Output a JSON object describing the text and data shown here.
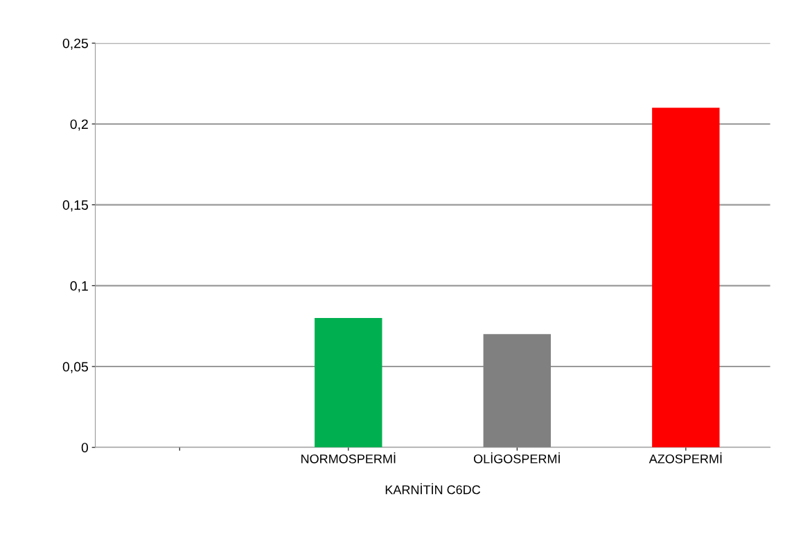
{
  "chart_data": {
    "type": "bar",
    "xlabel": "KARNİTİN C6DC",
    "categories": [
      null,
      "NORMOSPERMİ",
      "OLİGOSPERMİ",
      "AZOSPERMİ"
    ],
    "values": [
      null,
      0.08,
      0.07,
      0.21
    ],
    "colors": [
      "#00b050",
      "#00b050",
      "#808080",
      "#ff0000"
    ],
    "ylim": [
      0,
      0.25
    ],
    "yticks": [
      {
        "value": 0,
        "label": "0"
      },
      {
        "value": 0.05,
        "label": "0,05"
      },
      {
        "value": 0.1,
        "label": "0,1"
      },
      {
        "value": 0.15,
        "label": "0,15"
      },
      {
        "value": 0.2,
        "label": "0,2"
      },
      {
        "value": 0.25,
        "label": "0,25"
      }
    ],
    "grid": "y"
  }
}
